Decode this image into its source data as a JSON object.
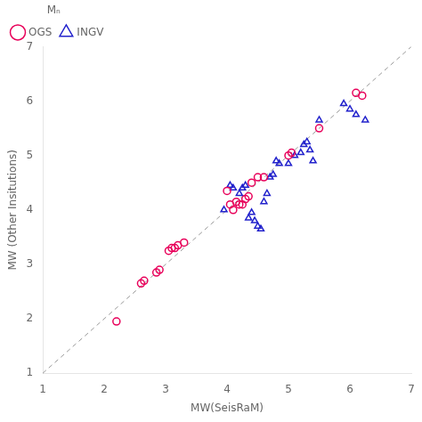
{
  "chart_data": {
    "type": "scatter",
    "xlabel": "MW(SeisRaM)",
    "ylabel": "MW (Other Insitutions)",
    "legend_title": "Mₙ",
    "legend": "upper left",
    "grid": false,
    "xlim": [
      1,
      7
    ],
    "ylim": [
      1,
      7
    ],
    "xticks": [
      1,
      2,
      3,
      4,
      5,
      6,
      7
    ],
    "yticks": [
      1,
      2,
      3,
      4,
      5,
      6,
      7
    ],
    "series": [
      {
        "type": "line",
        "line_style": "dashed",
        "color": "#999999",
        "x": [
          1,
          7
        ],
        "values": [
          1,
          7
        ]
      },
      {
        "name": "OGS",
        "type": "scatter",
        "marker": "circle",
        "color": "#e8005a",
        "x": [
          2.2,
          2.6,
          2.65,
          2.85,
          2.9,
          3.05,
          3.1,
          3.15,
          3.2,
          3.3,
          4.0,
          4.05,
          4.1,
          4.15,
          4.2,
          4.25,
          4.3,
          4.35,
          4.4,
          4.5,
          4.6,
          5.0,
          5.05,
          5.5,
          6.1,
          6.2
        ],
        "values": [
          1.95,
          2.65,
          2.7,
          2.85,
          2.9,
          3.25,
          3.3,
          3.3,
          3.35,
          3.4,
          4.35,
          4.1,
          4.0,
          4.15,
          4.1,
          4.1,
          4.2,
          4.25,
          4.5,
          4.6,
          4.6,
          5.0,
          5.05,
          5.5,
          6.15,
          6.1
        ]
      },
      {
        "name": "INGV",
        "type": "scatter",
        "marker": "triangle",
        "color": "#2222cc",
        "x": [
          3.95,
          4.05,
          4.1,
          4.2,
          4.25,
          4.3,
          4.35,
          4.4,
          4.45,
          4.5,
          4.55,
          4.6,
          4.65,
          4.7,
          4.75,
          4.8,
          4.85,
          5.0,
          5.1,
          5.2,
          5.25,
          5.3,
          5.35,
          5.4,
          5.5,
          5.9,
          6.0,
          6.1,
          6.25
        ],
        "values": [
          4.0,
          4.45,
          4.4,
          4.3,
          4.4,
          4.45,
          3.85,
          3.95,
          3.8,
          3.7,
          3.65,
          4.15,
          4.3,
          4.6,
          4.65,
          4.9,
          4.85,
          4.85,
          5.0,
          5.05,
          5.2,
          5.25,
          5.1,
          4.9,
          5.65,
          5.95,
          5.85,
          5.75,
          5.65
        ]
      }
    ]
  }
}
